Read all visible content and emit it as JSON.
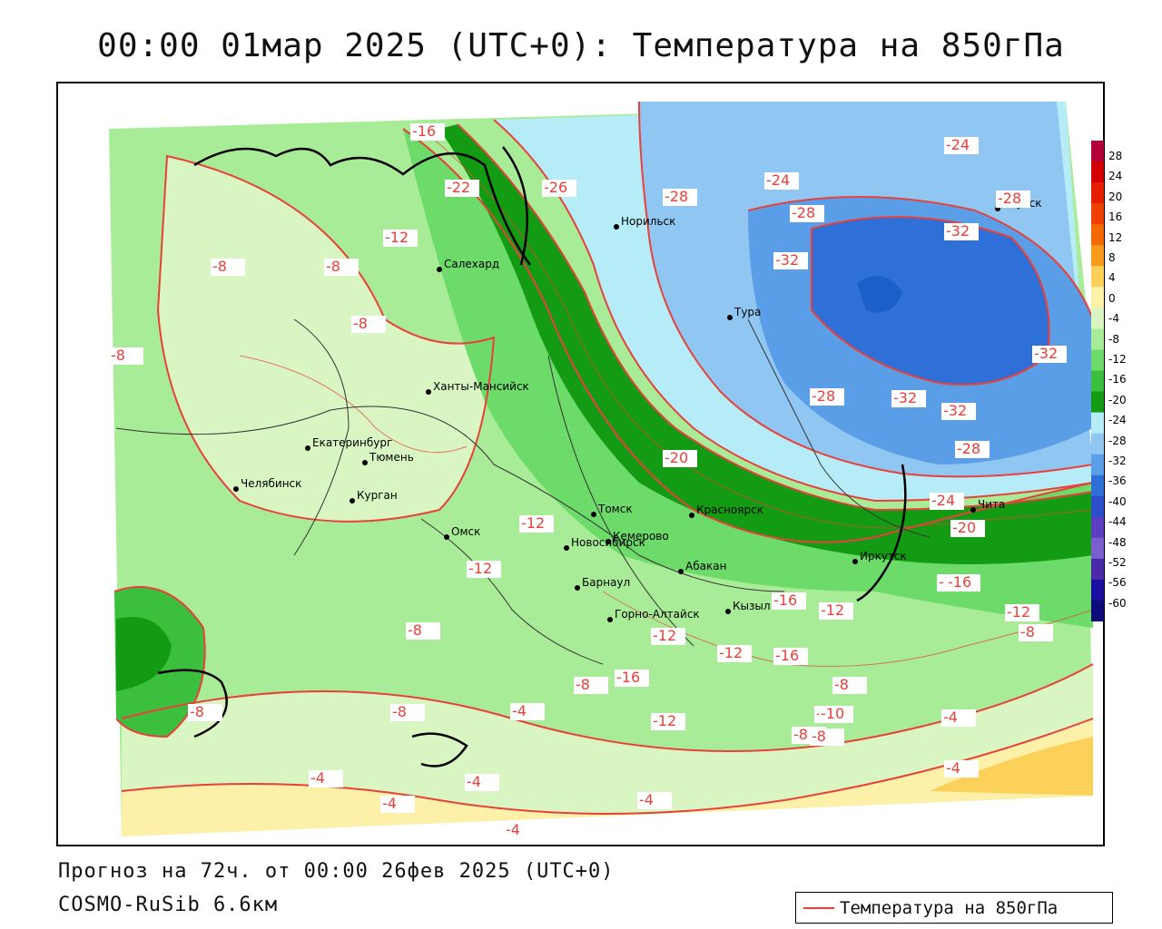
{
  "title": "00:00 01мар 2025 (UTC+0): Температура на 850гПа",
  "footer": {
    "forecast": "Прогноз на 72ч. от 00:00 26фев 2025 (UTC+0)",
    "model": "COSMO-RuSib 6.6км"
  },
  "legend": {
    "series_label": "Температура на 850гПа",
    "line_color": "#e8403a"
  },
  "colorbar": {
    "ticks": [
      "28",
      "24",
      "20",
      "16",
      "12",
      "8",
      "4",
      "0",
      "-4",
      "-8",
      "-12",
      "-16",
      "-20",
      "-24",
      "-28",
      "-32",
      "-36",
      "-40",
      "-44",
      "-48",
      "-52",
      "-56",
      "-60"
    ],
    "colors": [
      "#b3003b",
      "#d40000",
      "#e61e00",
      "#f04000",
      "#f56a00",
      "#f99a1a",
      "#fcd15a",
      "#fdf0a8",
      "#d8f5c2",
      "#a9ec98",
      "#6cdb6a",
      "#3cbf3c",
      "#139b13",
      "#b5ecf7",
      "#8fc7f2",
      "#5b9ee8",
      "#2f6fd8",
      "#2a4fc8",
      "#5a3fc0",
      "#7b5fd0",
      "#4a2aa8",
      "#1b0fa0",
      "#0d0a7a"
    ]
  },
  "cities": [
    {
      "name": "Норильск"
    },
    {
      "name": "Якутск"
    },
    {
      "name": "Салехард"
    },
    {
      "name": "Тура"
    },
    {
      "name": "Ханты-Мансийск"
    },
    {
      "name": "Екатеринбург"
    },
    {
      "name": "Тюмень"
    },
    {
      "name": "Челябинск"
    },
    {
      "name": "Курган"
    },
    {
      "name": "Омск"
    },
    {
      "name": "Томск"
    },
    {
      "name": "Красноярск"
    },
    {
      "name": "Новосибирск"
    },
    {
      "name": "Кемерово"
    },
    {
      "name": "Абакан"
    },
    {
      "name": "Барнаул"
    },
    {
      "name": "Горно-Алтайск"
    },
    {
      "name": "Кызыл"
    },
    {
      "name": "Иркутск"
    },
    {
      "name": "Чита"
    }
  ],
  "contour_labels": [
    "-16",
    "-22",
    "-26",
    "-28",
    "-24",
    "-24",
    "-28",
    "-28",
    "-32",
    "-32",
    "-12",
    "-8",
    "-8",
    "-8",
    "-8",
    "-32",
    "-28",
    "-32",
    "-32",
    "-28",
    "-12",
    "-20",
    "-12",
    "-12",
    "-16",
    "-12",
    "-12",
    "-12",
    "-8",
    "-8",
    "-8",
    "-8",
    "-16",
    "-16",
    "-12",
    "-16",
    "-12",
    "-8",
    "-8",
    "-4",
    "-4",
    "-4",
    "-4",
    "-4",
    "-4",
    "-4",
    "-4",
    "-24",
    "-20",
    "-16",
    "-8",
    "-8",
    "-10"
  ]
}
